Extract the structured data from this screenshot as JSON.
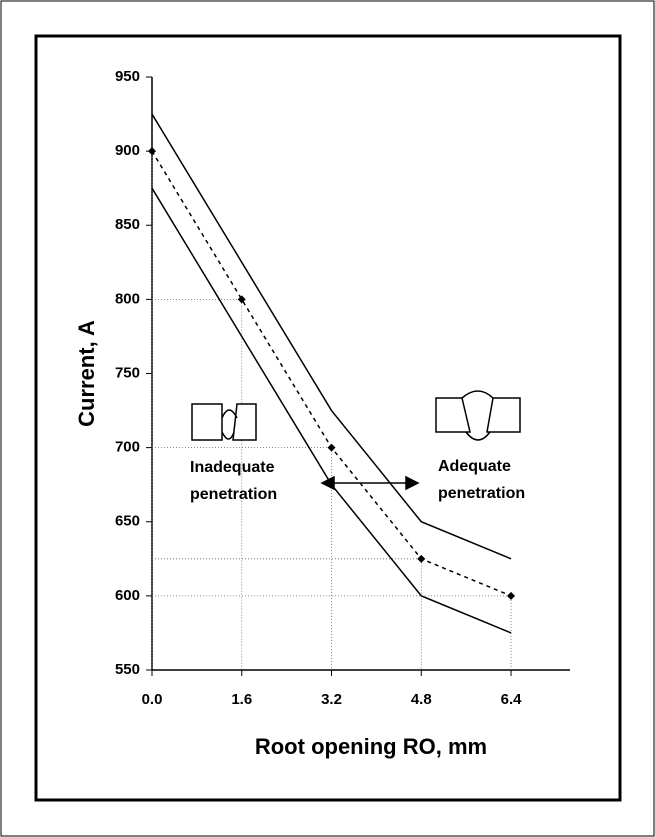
{
  "chart_data": {
    "type": "line",
    "xlabel": "Root opening RO, mm",
    "ylabel": "Current, A",
    "xlim": [
      0,
      7.45
    ],
    "ylim": [
      550,
      950
    ],
    "xticks": [
      {
        "value": 0,
        "label": "0.0"
      },
      1.6,
      3.2,
      4.8,
      6.4
    ],
    "yticks": [
      550,
      600,
      650,
      700,
      750,
      800,
      850,
      900,
      950
    ],
    "series": [
      {
        "color": "#000000",
        "style": "solid",
        "markers": false,
        "x": [
          0,
          3.2,
          4.8,
          6.4
        ],
        "values": [
          925,
          725,
          650,
          625
        ]
      },
      {
        "color": "#000000",
        "style": "dashed",
        "markers": true,
        "x": [
          0,
          1.6,
          3.2,
          4.8,
          6.4
        ],
        "values": [
          900,
          800,
          700,
          625,
          600
        ]
      },
      {
        "color": "#000000",
        "style": "solid",
        "markers": false,
        "x": [
          0,
          3.2,
          4.8,
          6.4
        ],
        "values": [
          875,
          675,
          600,
          575
        ]
      }
    ],
    "annotations": [
      [
        "Inadequate",
        "penetration"
      ],
      [
        "Adequate",
        "penetration"
      ]
    ]
  }
}
